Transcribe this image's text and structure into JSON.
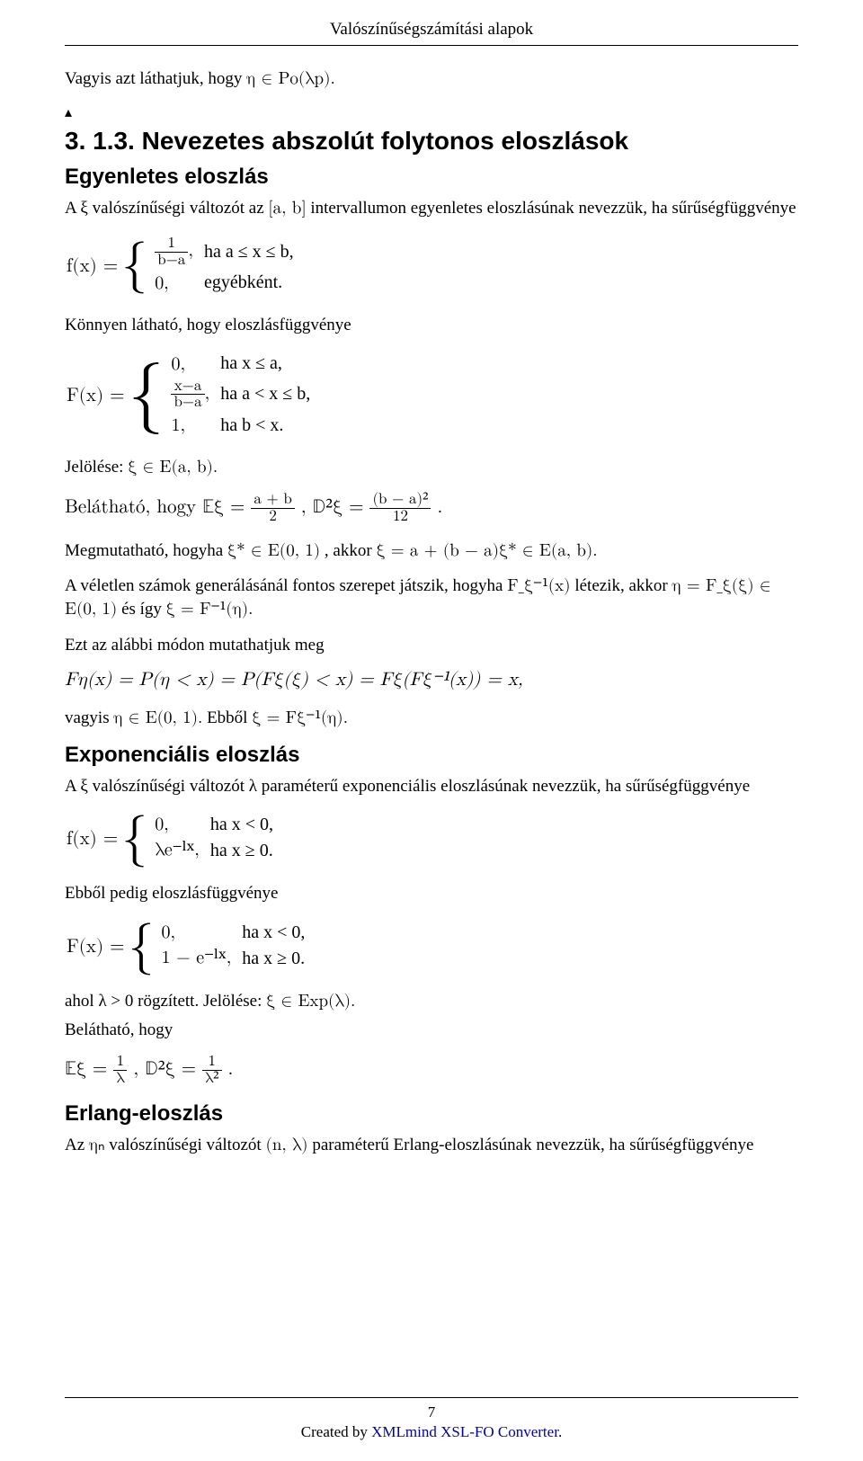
{
  "running_head": "Valószínűségszámítási alapok",
  "intro_para_a": "Vagyis azt láthatjuk, hogy ",
  "intro_math": "η ∈ Po(λp).",
  "tri": "▴",
  "section_number": "3. 1.3. Nevezetes abszolút folytonos eloszlások",
  "subsec1_title": "Egyenletes eloszlás",
  "s1_p1_a": "A ξ valószínűségi változót az ",
  "s1_p1_int": "[a, b]",
  "s1_p1_b": " intervallumon egyenletes eloszlásúnak nevezzük, ha sűrűségfüggvénye",
  "f_density_lhs": "f(x) = ",
  "f_density_case1_frac_num": "1",
  "f_density_case1_frac_den": "b−a",
  "f_density_case1_tail": ",",
  "f_density_case1_cond": "ha a ≤ x ≤ b,",
  "f_density_case2_val": "0,",
  "f_density_case2_cond": "egyébként.",
  "s1_p2": "Könnyen látható, hogy eloszlásfüggvénye",
  "F_cdf_lhs": "F(x) = ",
  "F_cdf_c1_val": "0,",
  "F_cdf_c1_cond": "ha x ≤ a,",
  "F_cdf_c2_frac_num": "x−a",
  "F_cdf_c2_frac_den": "b−a",
  "F_cdf_c2_tail": ",",
  "F_cdf_c2_cond": "ha a < x ≤ b,",
  "F_cdf_c3_val": "1,",
  "F_cdf_c3_cond": "ha b < x.",
  "s1_notation_a": "Jelölése: ",
  "s1_notation_math": "ξ ∈ E(a, b).",
  "belathato_a": "Belátható, hogy ",
  "belathato_eq1_lhs": "𝔼ξ = ",
  "belathato_eq1_frac_num": "a + b",
  "belathato_eq1_frac_den": "2",
  "belathato_sep": ",    ",
  "belathato_eq2_lhs": "𝔻²ξ = ",
  "belathato_eq2_frac_num": "(b − a)²",
  "belathato_eq2_frac_den": "12",
  "belathato_dot": ".",
  "megmut_a": "Megmutatható, hogyha ",
  "megmut_m1": "ξ* ∈ E(0, 1)",
  "megmut_b": ", akkor ",
  "megmut_m2": "ξ = a + (b − a)ξ* ∈ E(a, b).",
  "veletlen_a": "A véletlen számok generálásánál fontos szerepet játszik, hogyha ",
  "veletlen_m1": "F_ξ⁻¹(x)",
  "veletlen_b": " létezik, akkor ",
  "veletlen_m2": "η = F_ξ(ξ) ∈ E(0, 1)",
  "veletlen_c": " és így ",
  "veletlen_m3": "ξ = F⁻¹(η).",
  "alabb": "Ezt az alábbi módon mutathatjuk meg",
  "proof_line": "Fη(x) = P(η < x) = P(Fξ(ξ) < x) = Fξ(Fξ⁻¹(x)) = x,",
  "vagyis_a": "vagyis ",
  "vagyis_m1": "η ∈ E(0, 1).",
  "vagyis_b": " Ebből ",
  "vagyis_m2": "ξ = Fξ⁻¹(η).",
  "subsec2_title": "Exponenciális eloszlás",
  "s2_p1": "A ξ valószínűségi változót λ paraméterű exponenciális eloszlásúnak nevezzük, ha sűrűségfüggvénye",
  "exp_f_lhs": "f(x) = ",
  "exp_f_c1_val": "0,",
  "exp_f_c1_cond": "ha x < 0,",
  "exp_f_c2_val": "λe⁻ˡˣ,",
  "exp_f_c2_cond": "ha x ≥ 0.",
  "s2_p2": "Ebből pedig eloszlásfüggvénye",
  "exp_F_lhs": "F(x) = ",
  "exp_F_c1_val": "0,",
  "exp_F_c1_cond": "ha x < 0,",
  "exp_F_c2_val": "1 − e⁻ˡˣ,",
  "exp_F_c2_cond": "ha x ≥ 0.",
  "s2_p3_a": "ahol λ > 0 rögzített. Jelölése: ",
  "s2_p3_m": "ξ ∈ Exp(λ).",
  "s2_p4": "Belátható, hogy",
  "exp_moments_e_lhs": "𝔼ξ = ",
  "exp_moments_e_num": "1",
  "exp_moments_e_den": "λ",
  "exp_moments_sep": ",    ",
  "exp_moments_d_lhs": "𝔻²ξ = ",
  "exp_moments_d_num": "1",
  "exp_moments_d_den": "λ²",
  "exp_moments_dot": ".",
  "subsec3_title": "Erlang-eloszlás",
  "s3_p1_a": "Az ",
  "s3_p1_m1": "ηₙ",
  "s3_p1_b": " valószínűségi változót ",
  "s3_p1_m2": "(n, λ)",
  "s3_p1_c": " paraméterű Erlang-eloszlásúnak nevezzük, ha sűrűségfüggvénye",
  "page_number": "7",
  "footer_credit_a": "Created by ",
  "footer_credit_b": "XMLmind XSL-FO Converter",
  "footer_credit_dot": "."
}
